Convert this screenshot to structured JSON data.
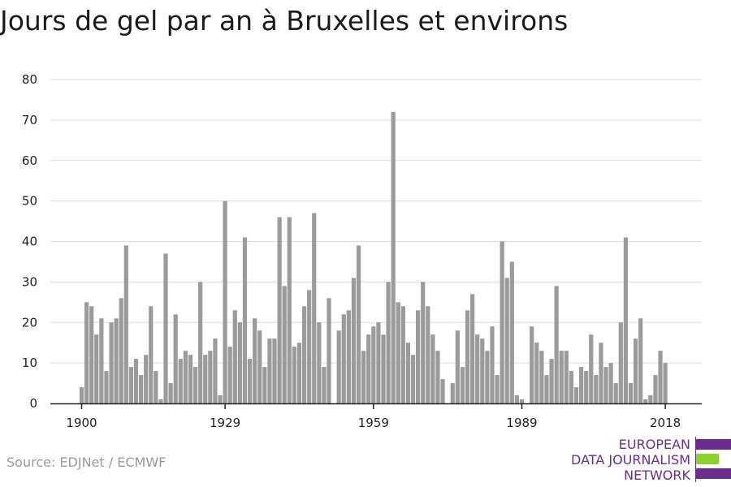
{
  "title": "Jours de gel par an à Bruxelles et environs",
  "source": "Source: EDJNet / ECMWF",
  "logo": {
    "lines": [
      "EUROPEAN",
      "DATA JOURNALISM",
      "NETWORK"
    ],
    "colors": {
      "purple": "#6b2d8c",
      "green": "#8cd12e"
    }
  },
  "colors": {
    "bar": "#9b9b9b",
    "grid": "#dddddd",
    "axis": "#222222"
  },
  "chart_data": {
    "type": "bar",
    "title": "Jours de gel par an à Bruxelles et environs",
    "xlabel": "",
    "ylabel": "",
    "ylim": [
      0,
      80
    ],
    "yticks": [
      0,
      10,
      20,
      30,
      40,
      50,
      60,
      70,
      80
    ],
    "xticks": [
      1900,
      1929,
      1959,
      1989,
      2018
    ],
    "grid": true,
    "categories": [
      1900,
      1901,
      1902,
      1903,
      1904,
      1905,
      1906,
      1907,
      1908,
      1909,
      1910,
      1911,
      1912,
      1913,
      1914,
      1915,
      1916,
      1917,
      1918,
      1919,
      1920,
      1921,
      1922,
      1923,
      1924,
      1925,
      1926,
      1927,
      1928,
      1929,
      1930,
      1931,
      1932,
      1933,
      1934,
      1935,
      1936,
      1937,
      1938,
      1939,
      1940,
      1941,
      1942,
      1943,
      1944,
      1945,
      1946,
      1947,
      1948,
      1949,
      1950,
      1951,
      1952,
      1953,
      1954,
      1955,
      1956,
      1957,
      1958,
      1959,
      1960,
      1961,
      1962,
      1963,
      1964,
      1965,
      1966,
      1967,
      1968,
      1969,
      1970,
      1971,
      1972,
      1973,
      1974,
      1975,
      1976,
      1977,
      1978,
      1979,
      1980,
      1981,
      1982,
      1983,
      1984,
      1985,
      1986,
      1987,
      1988,
      1989,
      1990,
      1991,
      1992,
      1993,
      1994,
      1995,
      1996,
      1997,
      1998,
      1999,
      2000,
      2001,
      2002,
      2003,
      2004,
      2005,
      2006,
      2007,
      2008,
      2009,
      2010,
      2011,
      2012,
      2013,
      2014,
      2015,
      2016,
      2017,
      2018
    ],
    "values": [
      4,
      25,
      24,
      17,
      21,
      8,
      20,
      21,
      26,
      39,
      9,
      11,
      7,
      12,
      24,
      8,
      1,
      37,
      5,
      22,
      11,
      13,
      12,
      9,
      30,
      12,
      13,
      16,
      2,
      50,
      14,
      23,
      20,
      41,
      11,
      21,
      18,
      9,
      16,
      16,
      46,
      29,
      46,
      14,
      15,
      24,
      28,
      47,
      20,
      9,
      26,
      0,
      18,
      22,
      23,
      31,
      39,
      13,
      17,
      19,
      20,
      17,
      30,
      72,
      25,
      24,
      15,
      12,
      23,
      30,
      24,
      17,
      13,
      6,
      0,
      5,
      18,
      9,
      23,
      27,
      17,
      16,
      13,
      19,
      7,
      40,
      31,
      35,
      2,
      1,
      0,
      19,
      15,
      13,
      7,
      11,
      29,
      13,
      13,
      8,
      4,
      9,
      8,
      17,
      7,
      15,
      9,
      10,
      5,
      20,
      41,
      5,
      16,
      21,
      1,
      2,
      7,
      13,
      10
    ]
  }
}
